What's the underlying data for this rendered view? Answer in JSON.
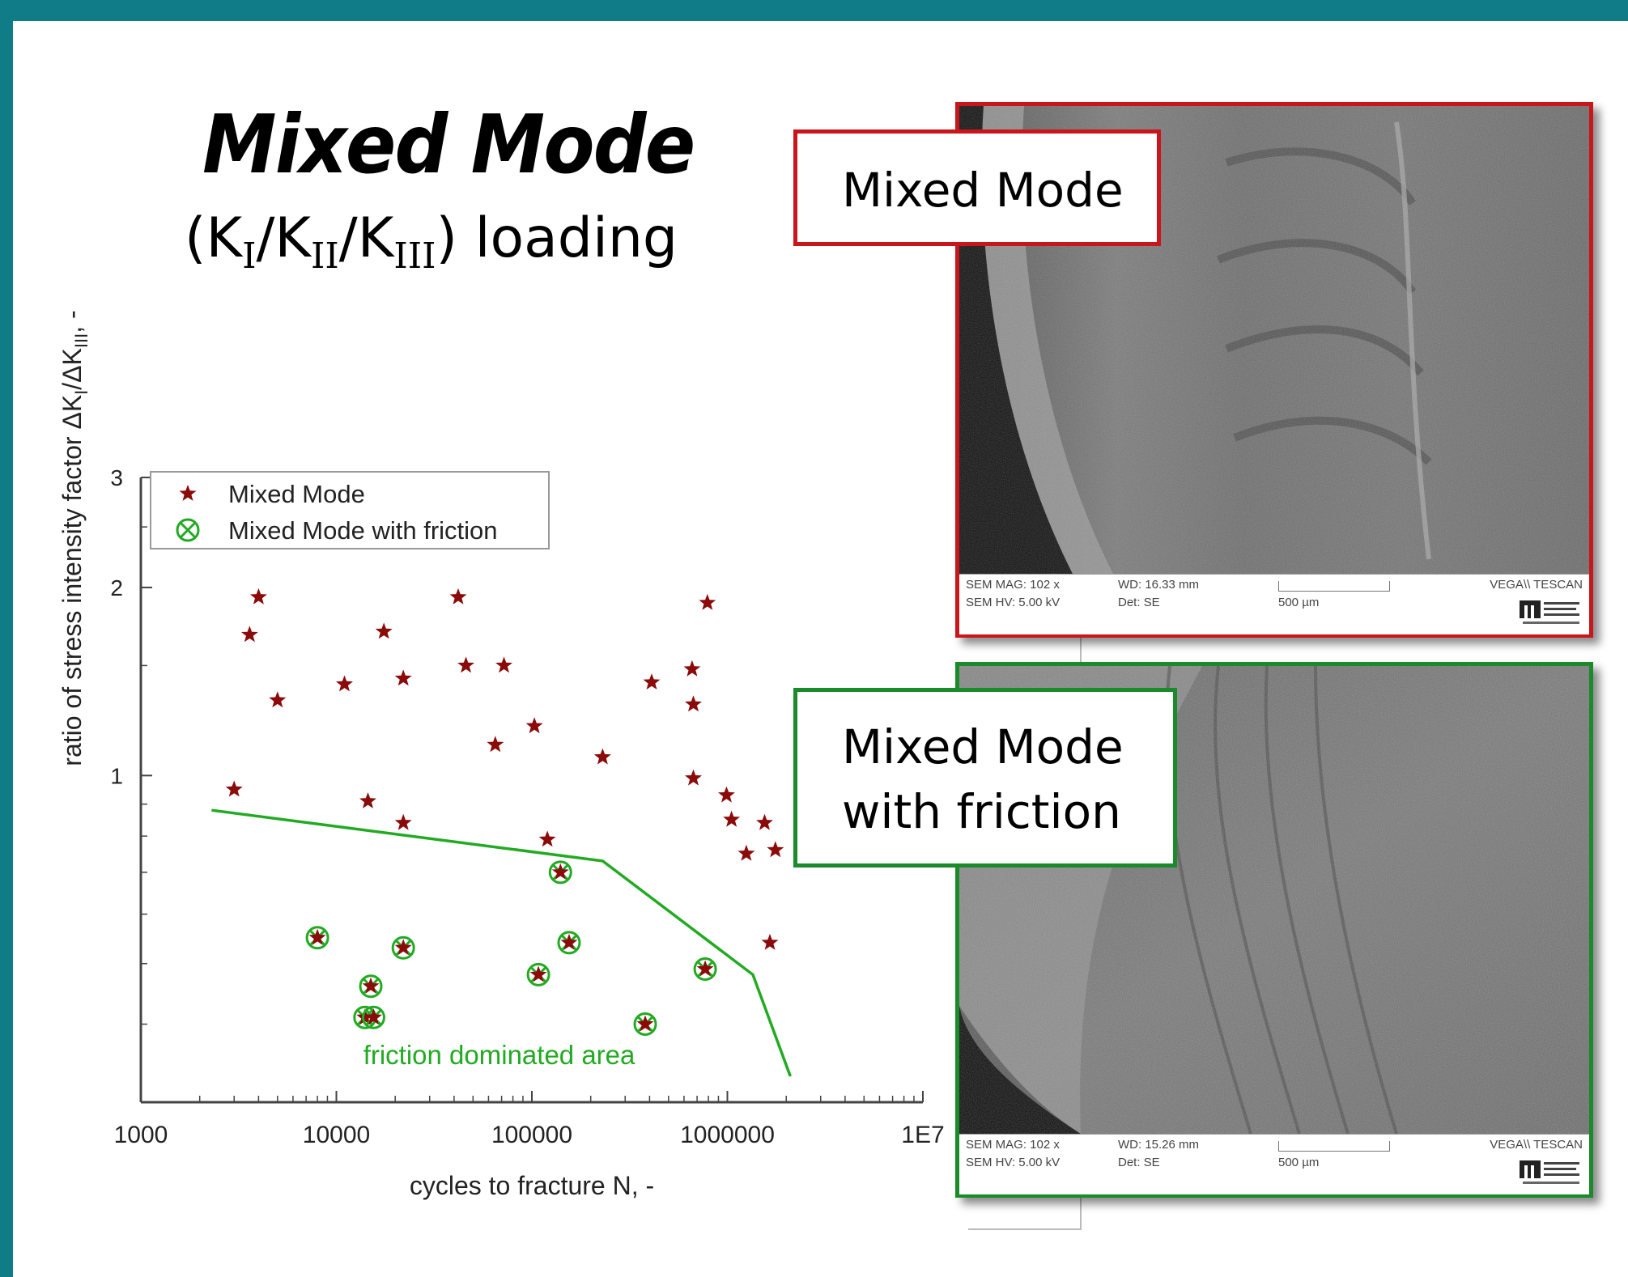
{
  "heading": {
    "title": "Mixed Mode",
    "subtitle_open": "(K",
    "sub1": "I",
    "slash1": "/K",
    "sub2": "II",
    "slash2": "/K",
    "sub3": "III",
    "subtitle_close": ") loading"
  },
  "chart_data": {
    "type": "scatter",
    "title": "",
    "xlabel": "cycles to fracture N, -",
    "ylabel": "ratio of stress intensity factor ΔK",
    "ylabel_sub1": "I",
    "ylabel_mid": "/ΔK",
    "ylabel_sub2": "III",
    "ylabel_end": ", -",
    "x_scale": "log",
    "y_scale": "log",
    "xlim": [
      1000,
      10000000
    ],
    "ylim": [
      0.3,
      3
    ],
    "x_ticks": [
      "1000",
      "10000",
      "100000",
      "1000000",
      "1E7"
    ],
    "y_ticks": [
      {
        "value": 3,
        "label": "3"
      },
      {
        "value": 2,
        "label": "2"
      },
      {
        "value": 1,
        "label": "1"
      }
    ],
    "legend_position": "top-left",
    "legend": [
      "Mixed Mode",
      "Mixed Mode with friction"
    ],
    "series": [
      {
        "name": "Mixed Mode",
        "marker": "star",
        "color": "#8b0a0a",
        "points": [
          [
            3000,
            0.95
          ],
          [
            3600,
            1.68
          ],
          [
            4000,
            1.93
          ],
          [
            5000,
            1.32
          ],
          [
            11000,
            1.4
          ],
          [
            14500,
            0.91
          ],
          [
            17500,
            1.7
          ],
          [
            22000,
            1.43
          ],
          [
            22000,
            0.84
          ],
          [
            42000,
            1.93
          ],
          [
            46000,
            1.5
          ],
          [
            65000,
            1.12
          ],
          [
            72000,
            1.5
          ],
          [
            103000,
            1.2
          ],
          [
            120000,
            0.79
          ],
          [
            230000,
            1.07
          ],
          [
            410000,
            1.41
          ],
          [
            660000,
            1.48
          ],
          [
            670000,
            1.3
          ],
          [
            670000,
            0.99
          ],
          [
            790000,
            1.89
          ],
          [
            990000,
            0.93
          ],
          [
            1050000,
            0.85
          ],
          [
            1250000,
            0.75
          ],
          [
            1550000,
            0.84
          ],
          [
            1650000,
            0.54
          ],
          [
            1760000,
            0.76
          ]
        ]
      },
      {
        "name": "Mixed Mode with friction",
        "marker": "circled-x",
        "color": "#22aa22",
        "points": [
          [
            8000,
            0.55
          ],
          [
            14000,
            0.41
          ],
          [
            15000,
            0.46
          ],
          [
            15500,
            0.41
          ],
          [
            22000,
            0.53
          ],
          [
            108000,
            0.48
          ],
          [
            140000,
            0.7
          ],
          [
            155000,
            0.54
          ],
          [
            380000,
            0.4
          ],
          [
            770000,
            0.49
          ]
        ]
      },
      {
        "name": "",
        "type": "line",
        "color": "#22aa22",
        "points": [
          [
            2300,
            0.88
          ],
          [
            230000,
            0.73
          ],
          [
            1350000,
            0.48
          ],
          [
            2100000,
            0.33
          ]
        ]
      }
    ],
    "annotations": [
      {
        "text": "friction dominated area",
        "color": "#22aa22",
        "x": 68000,
        "y": 0.345
      }
    ]
  },
  "panels": {
    "top": {
      "label": "Mixed Mode",
      "border_color": "#c8161c",
      "sem": {
        "mag": "SEM MAG: 102 x",
        "hv": "SEM HV: 5.00 kV",
        "wd": "WD: 16.33 mm",
        "det": "Det: SE",
        "scale": "500 µm",
        "vendor": "VEGA\\\\ TESCAN"
      }
    },
    "bottom": {
      "label_line1": "Mixed Mode",
      "label_line2": "with friction",
      "border_color": "#1a8a2a",
      "sem": {
        "mag": "SEM MAG: 102 x",
        "hv": "SEM HV: 5.00 kV",
        "wd": "WD: 15.26 mm",
        "det": "Det: SE",
        "scale": "500 µm",
        "vendor": "VEGA\\\\ TESCAN"
      }
    }
  }
}
